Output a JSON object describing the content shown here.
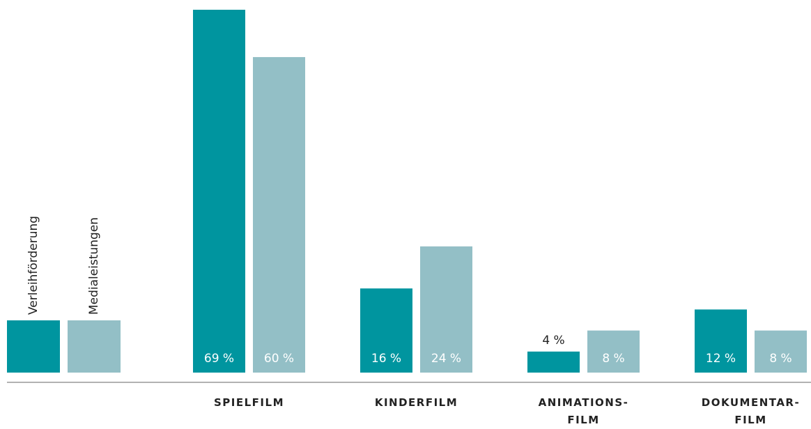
{
  "chart_data": {
    "type": "bar",
    "categories": [
      "SPIELFILM",
      "KINDERFILM",
      "ANIMATIONS-\nFILM",
      "DOKUMENTAR-\nFILM"
    ],
    "series": [
      {
        "name": "Verleihförderung",
        "color": "#00959f",
        "values": [
          69,
          16,
          4,
          12
        ],
        "value_labels": [
          "69 %",
          "16 %",
          "4 %",
          "12 %"
        ]
      },
      {
        "name": "Medialeistungen",
        "color": "#93bfc6",
        "values": [
          60,
          24,
          8,
          8
        ],
        "value_labels": [
          "60 %",
          "24 %",
          "8 %",
          "8 %"
        ]
      }
    ]
  }
}
